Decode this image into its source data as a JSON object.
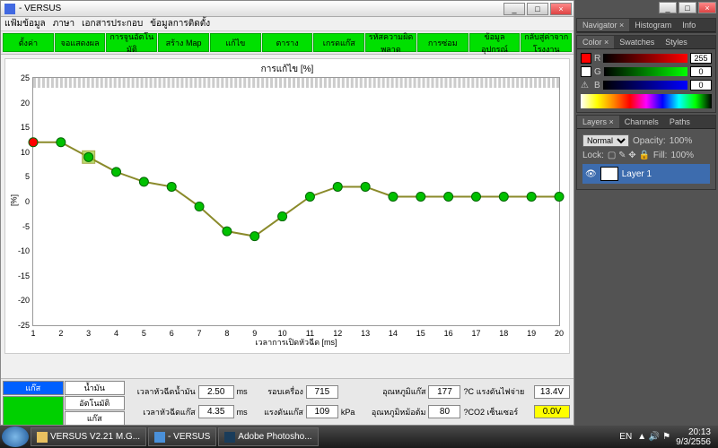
{
  "window": {
    "title": "- VERSUS"
  },
  "menu": [
    "แฟ้มข้อมูล",
    "ภาษา",
    "เอกสารประกอบ",
    "ข้อมูลการติดตั้ง"
  ],
  "toolbar": [
    "ตั้งค่า",
    "จอแสดงผล",
    "การจูนอัตโนมัติ",
    "สร้าง Map",
    "แก้ไข",
    "ตาราง",
    "เกรดแก๊ส",
    "รหัสความผิดพลาด",
    "การซ่อม",
    "ข้อมูลอุปกรณ์",
    "กลับสู่ค่าจากโรงงาน"
  ],
  "chart": {
    "title": "การแก้ไข [%]",
    "ylabel": "[%]",
    "xlabel": "เวลาการเปิดหัวฉีด [ms]",
    "ylim": [
      -25,
      25
    ],
    "yticks": [
      -25,
      -20,
      -15,
      -10,
      -5,
      0,
      5,
      10,
      15,
      20,
      25
    ],
    "xlim": [
      1,
      20
    ],
    "xticks": [
      1,
      2,
      3,
      4,
      5,
      6,
      7,
      8,
      9,
      10,
      11,
      12,
      13,
      14,
      15,
      16,
      17,
      18,
      19,
      20
    ],
    "line_color": "#8a8a2a",
    "marker_color": "#00c000",
    "marker_highlight": "#ff0000",
    "marker_sel": "#99cc33",
    "grid_color": "#cccccc",
    "bg": "#ffffff",
    "points": [
      [
        1,
        12
      ],
      [
        2,
        12
      ],
      [
        3,
        9
      ],
      [
        4,
        6
      ],
      [
        5,
        4
      ],
      [
        6,
        3
      ],
      [
        7,
        -1
      ],
      [
        8,
        -6
      ],
      [
        9,
        -7
      ],
      [
        10,
        -3
      ],
      [
        11,
        1
      ],
      [
        12,
        3
      ],
      [
        13,
        3
      ],
      [
        14,
        1
      ],
      [
        15,
        1
      ],
      [
        16,
        1
      ],
      [
        17,
        1
      ],
      [
        18,
        1
      ],
      [
        19,
        1
      ],
      [
        20,
        1
      ]
    ],
    "highlight_index": 0,
    "select_index": 2
  },
  "left_buttons": {
    "gas": "แก๊ส",
    "petrol": "น้ำมัน",
    "auto": "อัตโนมัติ",
    "gas2": "แก๊ส"
  },
  "readouts": {
    "inj_petrol_lbl": "เวลาหัวฉีดน้ำมัน",
    "inj_petrol": "2.50",
    "inj_petrol_u": "ms",
    "rpm_lbl": "รอบเครื่อง",
    "rpm": "715",
    "rpm_u": "",
    "gastemp_lbl": "อุณหภูมิแก๊ส",
    "gastemp": "177",
    "gastemp_u": "?C",
    "volt_lbl": "แรงดันไฟจ่าย",
    "volt": "13.4",
    "volt_u": "V",
    "inj_gas_lbl": "เวลาหัวฉีดแก๊ส",
    "inj_gas": "4.35",
    "inj_gas_u": "ms",
    "press_lbl": "แรงดันแก๊ส",
    "press": "109",
    "press_u": "kPa",
    "redtemp_lbl": "อุณหภูมิหม้อต้ม",
    "redtemp": "80",
    "redtemp_u": "?C",
    "o2_lbl": "O2 เซ็นเซอร์",
    "o2": "0.0",
    "o2_u": "V"
  },
  "ps": {
    "nav_tabs": [
      "Navigator ×",
      "Histogram",
      "Info"
    ],
    "color_tabs": [
      "Color ×",
      "Swatches",
      "Styles"
    ],
    "rgb": {
      "r": 255,
      "g": 0,
      "b": 0
    },
    "layer_tabs": [
      "Layers ×",
      "Channels",
      "Paths"
    ],
    "blend": "Normal",
    "opacity": "100%",
    "fill": "100%",
    "lock_lbl": "Lock:",
    "layer_name": "Layer 1"
  },
  "taskbar": {
    "items": [
      "VERSUS V2.21 M.G...",
      "- VERSUS",
      "Adobe Photosho..."
    ],
    "lang": "EN",
    "time": "20:13",
    "date": "9/3/2556"
  }
}
